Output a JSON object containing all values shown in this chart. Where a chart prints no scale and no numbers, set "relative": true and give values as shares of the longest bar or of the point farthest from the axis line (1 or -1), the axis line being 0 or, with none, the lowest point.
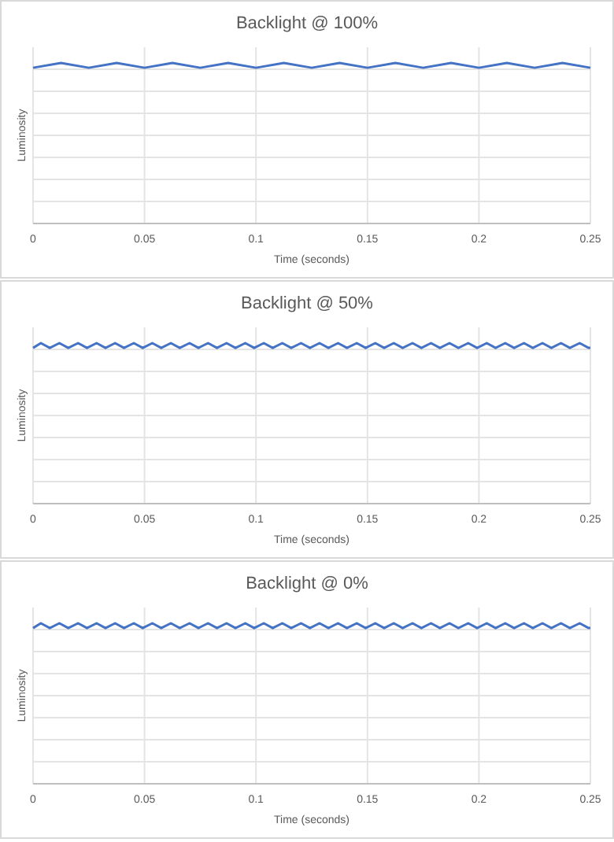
{
  "chart_data": [
    {
      "type": "line",
      "title": "Backlight @ 100%",
      "xlabel": "Time (seconds)",
      "ylabel": "Luminosity",
      "relative": true,
      "grid": true,
      "xlim": [
        0,
        0.25
      ],
      "xticks": [
        0,
        0.05,
        0.1,
        0.15,
        0.2,
        0.25
      ],
      "x": [
        0,
        0.0125,
        0.025,
        0.0375,
        0.05,
        0.0625,
        0.075,
        0.0875,
        0.1,
        0.1125,
        0.125,
        0.1375,
        0.15,
        0.1625,
        0.175,
        0.1875,
        0.2,
        0.2125,
        0.225,
        0.2375,
        0.25
      ],
      "series": [
        {
          "color": "#4472c4",
          "values": [
            0.97,
            1,
            0.97,
            1,
            0.97,
            1,
            0.97,
            1,
            0.97,
            1,
            0.97,
            1,
            0.97,
            1,
            0.97,
            1,
            0.97,
            1,
            0.97,
            1,
            0.97
          ]
        }
      ]
    },
    {
      "type": "line",
      "title": "Backlight @ 50%",
      "xlabel": "Time (seconds)",
      "ylabel": "Luminosity",
      "relative": true,
      "grid": true,
      "xlim": [
        0,
        0.25
      ],
      "xticks": [
        0,
        0.05,
        0.1,
        0.15,
        0.2,
        0.25
      ],
      "x": [
        0,
        0.0035,
        0.0075,
        0.0118,
        0.0158,
        0.0202,
        0.0242,
        0.0285,
        0.0325,
        0.0368,
        0.0408,
        0.0452,
        0.0492,
        0.0535,
        0.0575,
        0.0618,
        0.0658,
        0.0702,
        0.0742,
        0.0785,
        0.0825,
        0.0868,
        0.0908,
        0.0952,
        0.0992,
        0.1035,
        0.1075,
        0.1118,
        0.1158,
        0.1202,
        0.1242,
        0.1285,
        0.1325,
        0.1368,
        0.1408,
        0.1452,
        0.1492,
        0.1535,
        0.1575,
        0.1618,
        0.1658,
        0.1702,
        0.1742,
        0.1785,
        0.1825,
        0.1868,
        0.1908,
        0.1952,
        0.1992,
        0.2035,
        0.2075,
        0.2118,
        0.2158,
        0.2202,
        0.2242,
        0.2285,
        0.2325,
        0.2368,
        0.2408,
        0.2452,
        0.2492,
        0.25
      ],
      "series": [
        {
          "color": "#4472c4",
          "values": [
            0.97,
            1,
            0.97,
            1,
            0.97,
            1,
            0.97,
            1,
            0.97,
            1,
            0.97,
            1,
            0.97,
            1,
            0.97,
            1,
            0.97,
            1,
            0.97,
            1,
            0.97,
            1,
            0.97,
            1,
            0.97,
            1,
            0.97,
            1,
            0.97,
            1,
            0.97,
            1,
            0.97,
            1,
            0.97,
            1,
            0.97,
            1,
            0.97,
            1,
            0.97,
            1,
            0.97,
            1,
            0.97,
            1,
            0.97,
            1,
            0.97,
            1,
            0.97,
            1,
            0.97,
            1,
            0.97,
            1,
            0.97,
            1,
            0.97,
            1,
            0.97,
            0.97
          ]
        }
      ]
    },
    {
      "type": "line",
      "title": "Backlight @ 0%",
      "xlabel": "Time (seconds)",
      "ylabel": "Luminosity",
      "relative": true,
      "grid": true,
      "xlim": [
        0,
        0.25
      ],
      "xticks": [
        0,
        0.05,
        0.1,
        0.15,
        0.2,
        0.25
      ],
      "x": [
        0,
        0.0035,
        0.0075,
        0.0118,
        0.0158,
        0.0202,
        0.0242,
        0.0285,
        0.0325,
        0.0368,
        0.0408,
        0.0452,
        0.0492,
        0.0535,
        0.0575,
        0.0618,
        0.0658,
        0.0702,
        0.0742,
        0.0785,
        0.0825,
        0.0868,
        0.0908,
        0.0952,
        0.0992,
        0.1035,
        0.1075,
        0.1118,
        0.1158,
        0.1202,
        0.1242,
        0.1285,
        0.1325,
        0.1368,
        0.1408,
        0.1452,
        0.1492,
        0.1535,
        0.1575,
        0.1618,
        0.1658,
        0.1702,
        0.1742,
        0.1785,
        0.1825,
        0.1868,
        0.1908,
        0.1952,
        0.1992,
        0.2035,
        0.2075,
        0.2118,
        0.2158,
        0.2202,
        0.2242,
        0.2285,
        0.2325,
        0.2368,
        0.2408,
        0.2452,
        0.2492,
        0.25
      ],
      "series": [
        {
          "color": "#4472c4",
          "values": [
            0.97,
            1,
            0.97,
            1,
            0.97,
            1,
            0.97,
            1,
            0.97,
            1,
            0.97,
            1,
            0.97,
            1,
            0.97,
            1,
            0.97,
            1,
            0.97,
            1,
            0.97,
            1,
            0.97,
            1,
            0.97,
            1,
            0.97,
            1,
            0.97,
            1,
            0.97,
            1,
            0.97,
            1,
            0.97,
            1,
            0.97,
            1,
            0.97,
            1,
            0.97,
            1,
            0.97,
            1,
            0.97,
            1,
            0.97,
            1,
            0.97,
            1,
            0.97,
            1,
            0.97,
            1,
            0.97,
            1,
            0.97,
            1,
            0.97,
            1,
            0.97,
            0.97
          ]
        }
      ]
    }
  ]
}
